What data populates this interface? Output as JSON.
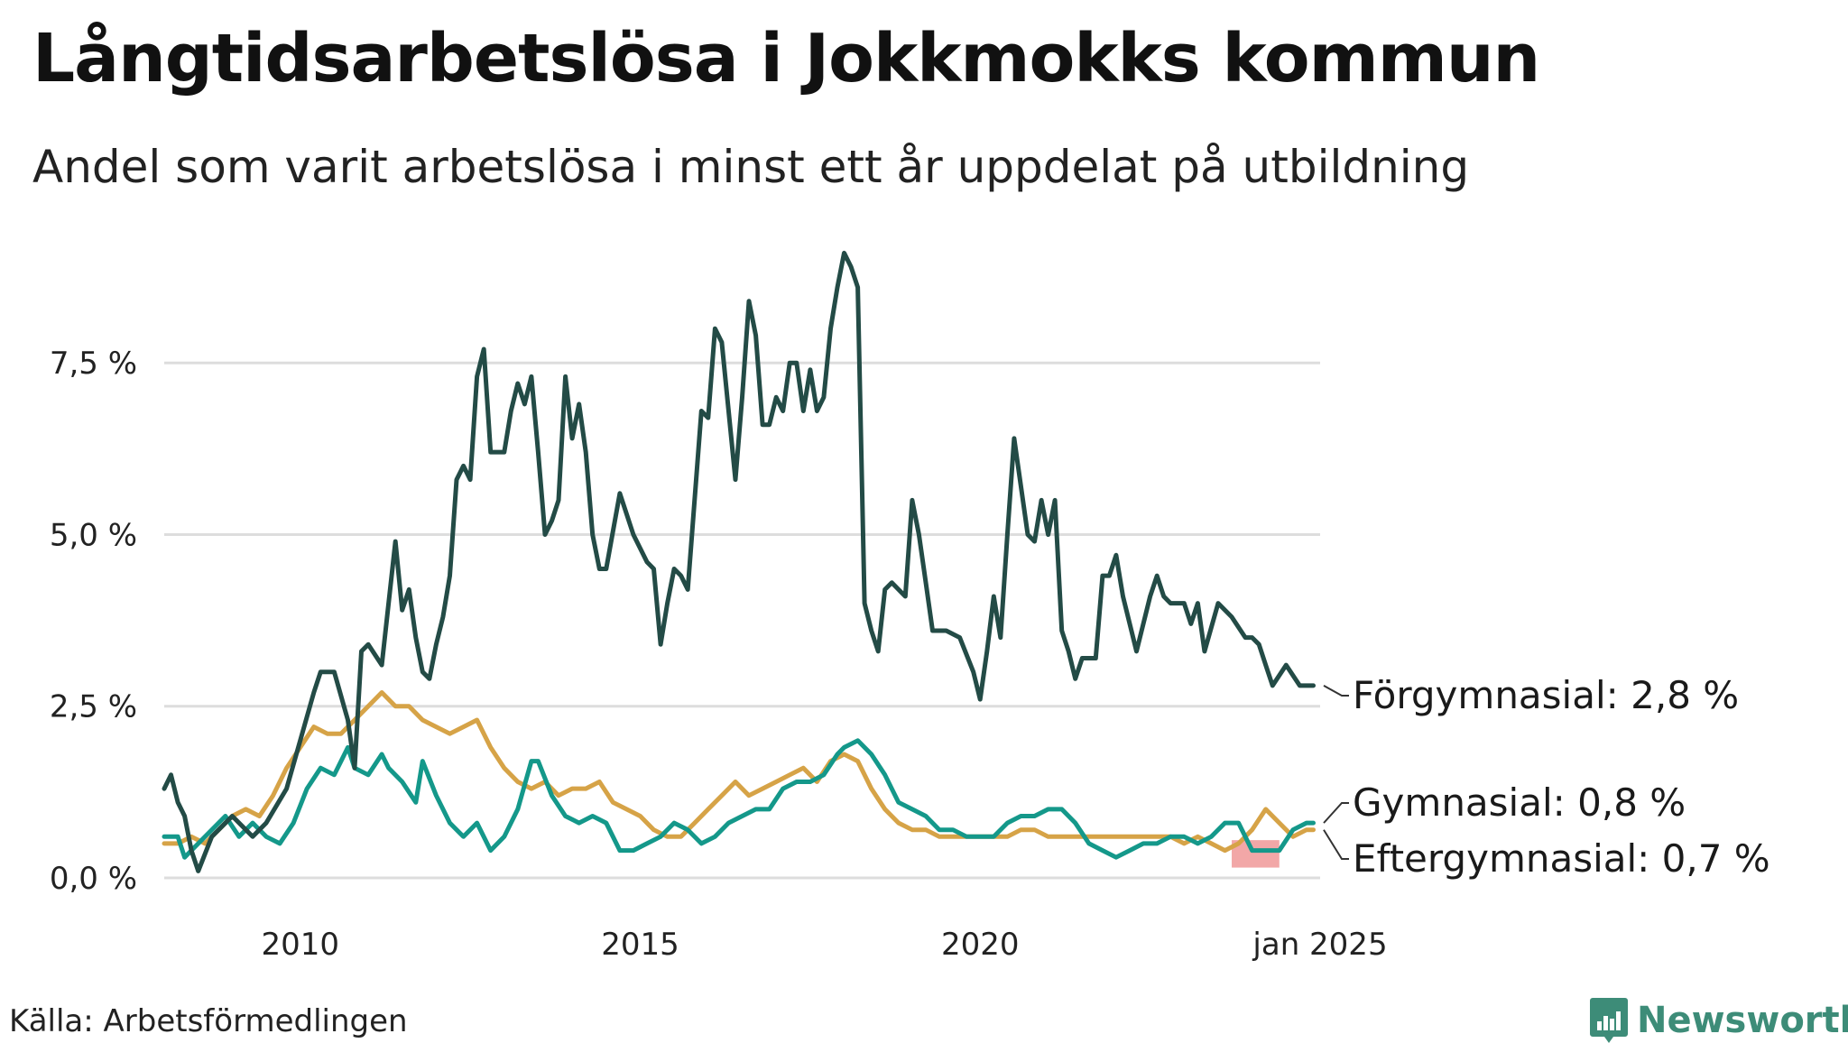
{
  "title": "Långtidsarbetslösa i Jokkmokks kommun",
  "subtitle": "Andel som varit arbetslösa i minst ett år uppdelat på utbildning",
  "source": "Källa: Arbetsförmedlingen",
  "brand": "Newsworthy",
  "colors": {
    "forgymnasial": "#234b46",
    "gymnasial": "#14988a",
    "eftergymnasial": "#d6a347",
    "highlight": "#f2a7a7",
    "grid": "#dddddd",
    "brand": "#3d8c78"
  },
  "chart_data": {
    "type": "line",
    "title": "Långtidsarbetslösa i Jokkmokks kommun",
    "subtitle": "Andel som varit arbetslösa i minst ett år uppdelat på utbildning",
    "xlabel": "",
    "ylabel": "",
    "ylim": [
      0,
      9.5
    ],
    "xlim": [
      2008.0,
      2025.0
    ],
    "grid": "horizontal",
    "y_ticks": [
      {
        "value": 0,
        "label": "0,0 %"
      },
      {
        "value": 2.5,
        "label": "2,5 %"
      },
      {
        "value": 5,
        "label": "5,0 %"
      },
      {
        "value": 7.5,
        "label": "7,5 %"
      }
    ],
    "x_ticks": [
      {
        "value": 2010,
        "label": "2010"
      },
      {
        "value": 2015,
        "label": "2015"
      },
      {
        "value": 2020,
        "label": "2020"
      },
      {
        "value": 2025,
        "label": "jan 2025"
      }
    ],
    "highlight": {
      "x_start": 2023.7,
      "x_end": 2024.4,
      "y_low": 0.15,
      "y_high": 0.55
    },
    "series": [
      {
        "key": "forgymnasial",
        "name": "Förgymnasial",
        "end_label": "Förgymnasial: 2,8 %",
        "x": [
          2008.0,
          2008.1,
          2008.2,
          2008.3,
          2008.4,
          2008.5,
          2008.7,
          2009.0,
          2009.3,
          2009.5,
          2009.8,
          2010.0,
          2010.2,
          2010.3,
          2010.5,
          2010.7,
          2010.8,
          2010.9,
          2011.0,
          2011.2,
          2011.4,
          2011.5,
          2011.6,
          2011.7,
          2011.8,
          2011.9,
          2012.0,
          2012.1,
          2012.2,
          2012.3,
          2012.4,
          2012.5,
          2012.6,
          2012.7,
          2012.8,
          2013.0,
          2013.1,
          2013.2,
          2013.3,
          2013.4,
          2013.5,
          2013.6,
          2013.7,
          2013.8,
          2013.9,
          2014.0,
          2014.1,
          2014.2,
          2014.3,
          2014.4,
          2014.5,
          2014.7,
          2014.9,
          2015.0,
          2015.1,
          2015.2,
          2015.3,
          2015.4,
          2015.5,
          2015.6,
          2015.7,
          2015.9,
          2016.0,
          2016.1,
          2016.2,
          2016.4,
          2016.5,
          2016.6,
          2016.7,
          2016.8,
          2016.9,
          2017.0,
          2017.1,
          2017.2,
          2017.3,
          2017.4,
          2017.5,
          2017.6,
          2017.7,
          2017.8,
          2017.9,
          2018.0,
          2018.1,
          2018.2,
          2018.3,
          2018.4,
          2018.5,
          2018.6,
          2018.7,
          2018.9,
          2019.0,
          2019.1,
          2019.2,
          2019.3,
          2019.5,
          2019.7,
          2019.9,
          2020.0,
          2020.1,
          2020.2,
          2020.3,
          2020.4,
          2020.5,
          2020.7,
          2020.8,
          2020.9,
          2021.0,
          2021.1,
          2021.2,
          2021.3,
          2021.4,
          2021.5,
          2021.7,
          2021.8,
          2021.9,
          2022.0,
          2022.1,
          2022.3,
          2022.5,
          2022.6,
          2022.7,
          2022.8,
          2023.0,
          2023.1,
          2023.2,
          2023.3,
          2023.5,
          2023.7,
          2023.9,
          2024.0,
          2024.1,
          2024.2,
          2024.3,
          2024.5,
          2024.7,
          2024.9
        ],
        "values": [
          1.3,
          1.5,
          1.1,
          0.9,
          0.4,
          0.1,
          0.6,
          0.9,
          0.6,
          0.8,
          1.3,
          2.0,
          2.7,
          3.0,
          3.0,
          2.3,
          1.6,
          3.3,
          3.4,
          3.1,
          4.9,
          3.9,
          4.2,
          3.5,
          3.0,
          2.9,
          3.4,
          3.8,
          4.4,
          5.8,
          6.0,
          5.8,
          7.3,
          7.7,
          6.2,
          6.2,
          6.8,
          7.2,
          6.9,
          7.3,
          6.2,
          5.0,
          5.2,
          5.5,
          7.3,
          6.4,
          6.9,
          6.2,
          5.0,
          4.5,
          4.5,
          5.6,
          5.0,
          4.8,
          4.6,
          4.5,
          3.4,
          4.0,
          4.5,
          4.4,
          4.2,
          6.8,
          6.7,
          8.0,
          7.8,
          5.8,
          7.0,
          8.4,
          7.9,
          6.6,
          6.6,
          7.0,
          6.8,
          7.5,
          7.5,
          6.8,
          7.4,
          6.8,
          7.0,
          8.0,
          8.6,
          9.1,
          8.9,
          8.6,
          4.0,
          3.6,
          3.3,
          4.2,
          4.3,
          4.1,
          5.5,
          5.0,
          4.3,
          3.6,
          3.6,
          3.5,
          3.0,
          2.6,
          3.3,
          4.1,
          3.5,
          5.0,
          6.4,
          5.0,
          4.9,
          5.5,
          5.0,
          5.5,
          3.6,
          3.3,
          2.9,
          3.2,
          3.2,
          4.4,
          4.4,
          4.7,
          4.1,
          3.3,
          4.1,
          4.4,
          4.1,
          4.0,
          4.0,
          3.7,
          4.0,
          3.3,
          4.0,
          3.8,
          3.5,
          3.5,
          3.4,
          3.1,
          2.8,
          3.1,
          2.8,
          2.8
        ]
      },
      {
        "key": "gymnasial",
        "name": "Gymnasial",
        "end_label": "Gymnasial: 0,8 %",
        "x": [
          2008.0,
          2008.2,
          2008.3,
          2008.5,
          2008.7,
          2008.9,
          2009.1,
          2009.3,
          2009.5,
          2009.7,
          2009.9,
          2010.1,
          2010.3,
          2010.5,
          2010.7,
          2010.8,
          2011.0,
          2011.2,
          2011.3,
          2011.5,
          2011.7,
          2011.8,
          2012.0,
          2012.2,
          2012.4,
          2012.6,
          2012.8,
          2013.0,
          2013.2,
          2013.4,
          2013.5,
          2013.7,
          2013.9,
          2014.1,
          2014.3,
          2014.5,
          2014.7,
          2014.9,
          2015.1,
          2015.3,
          2015.5,
          2015.7,
          2015.9,
          2016.1,
          2016.3,
          2016.5,
          2016.7,
          2016.9,
          2017.1,
          2017.3,
          2017.5,
          2017.7,
          2017.9,
          2018.0,
          2018.2,
          2018.4,
          2018.6,
          2018.8,
          2019.0,
          2019.2,
          2019.4,
          2019.6,
          2019.8,
          2020.0,
          2020.2,
          2020.4,
          2020.6,
          2020.8,
          2021.0,
          2021.2,
          2021.4,
          2021.6,
          2021.8,
          2022.0,
          2022.2,
          2022.4,
          2022.6,
          2022.8,
          2023.0,
          2023.2,
          2023.4,
          2023.6,
          2023.8,
          2024.0,
          2024.2,
          2024.4,
          2024.6,
          2024.8,
          2024.9
        ],
        "values": [
          0.6,
          0.6,
          0.3,
          0.5,
          0.7,
          0.9,
          0.6,
          0.8,
          0.6,
          0.5,
          0.8,
          1.3,
          1.6,
          1.5,
          1.9,
          1.6,
          1.5,
          1.8,
          1.6,
          1.4,
          1.1,
          1.7,
          1.2,
          0.8,
          0.6,
          0.8,
          0.4,
          0.6,
          1.0,
          1.7,
          1.7,
          1.2,
          0.9,
          0.8,
          0.9,
          0.8,
          0.4,
          0.4,
          0.5,
          0.6,
          0.8,
          0.7,
          0.5,
          0.6,
          0.8,
          0.9,
          1.0,
          1.0,
          1.3,
          1.4,
          1.4,
          1.5,
          1.8,
          1.9,
          2.0,
          1.8,
          1.5,
          1.1,
          1.0,
          0.9,
          0.7,
          0.7,
          0.6,
          0.6,
          0.6,
          0.8,
          0.9,
          0.9,
          1.0,
          1.0,
          0.8,
          0.5,
          0.4,
          0.3,
          0.4,
          0.5,
          0.5,
          0.6,
          0.6,
          0.5,
          0.6,
          0.8,
          0.8,
          0.4,
          0.4,
          0.4,
          0.7,
          0.8,
          0.8
        ]
      },
      {
        "key": "eftergymnasial",
        "name": "Eftergymnasial",
        "end_label": "Eftergymnasial: 0,7 %",
        "x": [
          2008.0,
          2008.2,
          2008.4,
          2008.6,
          2008.8,
          2009.0,
          2009.2,
          2009.4,
          2009.6,
          2009.8,
          2010.0,
          2010.2,
          2010.4,
          2010.6,
          2010.8,
          2011.0,
          2011.2,
          2011.4,
          2011.6,
          2011.8,
          2012.0,
          2012.2,
          2012.4,
          2012.6,
          2012.8,
          2013.0,
          2013.2,
          2013.4,
          2013.6,
          2013.8,
          2014.0,
          2014.2,
          2014.4,
          2014.6,
          2014.8,
          2015.0,
          2015.2,
          2015.4,
          2015.6,
          2015.8,
          2016.0,
          2016.2,
          2016.4,
          2016.6,
          2016.8,
          2017.0,
          2017.2,
          2017.4,
          2017.6,
          2017.8,
          2018.0,
          2018.2,
          2018.4,
          2018.6,
          2018.8,
          2019.0,
          2019.2,
          2019.4,
          2019.6,
          2019.8,
          2020.0,
          2020.2,
          2020.4,
          2020.6,
          2020.8,
          2021.0,
          2021.2,
          2021.4,
          2021.6,
          2021.8,
          2022.0,
          2022.2,
          2022.4,
          2022.6,
          2022.8,
          2023.0,
          2023.2,
          2023.4,
          2023.6,
          2023.8,
          2024.0,
          2024.2,
          2024.4,
          2024.6,
          2024.8,
          2024.9
        ],
        "values": [
          0.5,
          0.5,
          0.6,
          0.5,
          0.7,
          0.9,
          1.0,
          0.9,
          1.2,
          1.6,
          1.9,
          2.2,
          2.1,
          2.1,
          2.3,
          2.5,
          2.7,
          2.5,
          2.5,
          2.3,
          2.2,
          2.1,
          2.2,
          2.3,
          1.9,
          1.6,
          1.4,
          1.3,
          1.4,
          1.2,
          1.3,
          1.3,
          1.4,
          1.1,
          1.0,
          0.9,
          0.7,
          0.6,
          0.6,
          0.8,
          1.0,
          1.2,
          1.4,
          1.2,
          1.3,
          1.4,
          1.5,
          1.6,
          1.4,
          1.7,
          1.8,
          1.7,
          1.3,
          1.0,
          0.8,
          0.7,
          0.7,
          0.6,
          0.6,
          0.6,
          0.6,
          0.6,
          0.6,
          0.7,
          0.7,
          0.6,
          0.6,
          0.6,
          0.6,
          0.6,
          0.6,
          0.6,
          0.6,
          0.6,
          0.6,
          0.5,
          0.6,
          0.5,
          0.4,
          0.5,
          0.7,
          1.0,
          0.8,
          0.6,
          0.7,
          0.7
        ]
      }
    ]
  }
}
